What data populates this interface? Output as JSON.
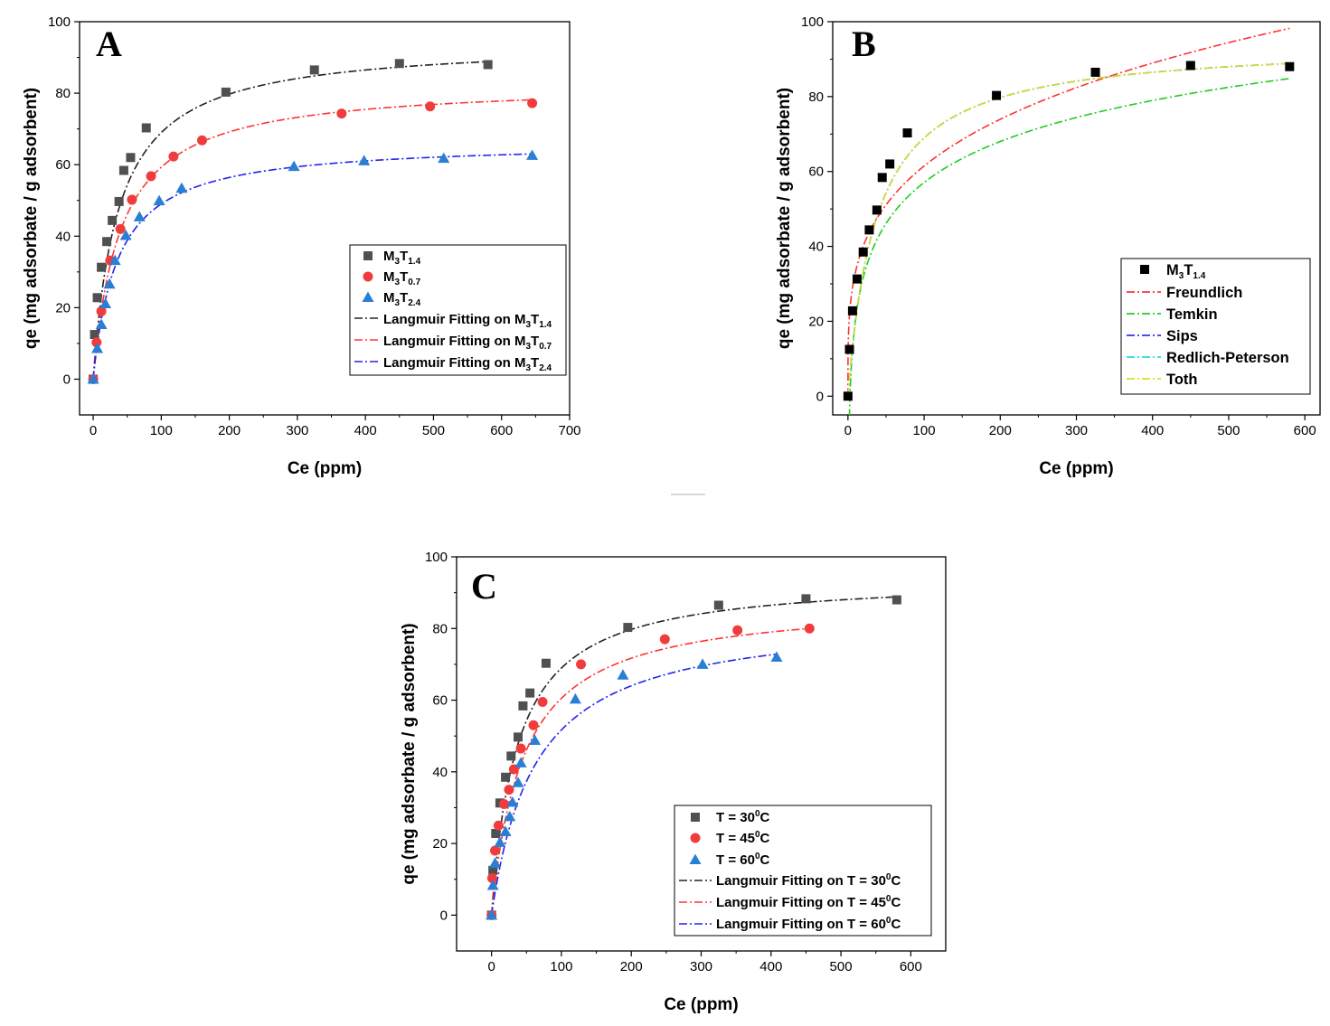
{
  "chart_data": [
    {
      "panel": "A",
      "type": "scatter",
      "xlabel": "Ce (ppm)",
      "ylabel": "qe (mg adsorbate / g adsorbent)",
      "xlim": [
        -20,
        700
      ],
      "ylim": [
        -10,
        100
      ],
      "xticks": [
        0,
        100,
        200,
        300,
        400,
        500,
        600,
        700
      ],
      "yticks": [
        0,
        20,
        40,
        60,
        80,
        100
      ],
      "legend_position": "center-right",
      "series": [
        {
          "name": "M3T1.4",
          "base": "M",
          "sub1": "3",
          "mid": "T",
          "sub2": "1.4",
          "marker": "square",
          "color": "#505050",
          "x": [
            0,
            2,
            6,
            12,
            20,
            28,
            38,
            45,
            55,
            78,
            195,
            325,
            450,
            580
          ],
          "y": [
            0,
            12.5,
            22.8,
            31.3,
            38.5,
            44.4,
            49.7,
            58.4,
            62,
            70.3,
            80.3,
            86.5,
            88.3,
            88
          ]
        },
        {
          "name": "M3T0.7",
          "base": "M",
          "sub1": "3",
          "mid": "T",
          "sub2": "0.7",
          "marker": "circle",
          "color": "#f03c3c",
          "x": [
            0,
            5,
            12,
            25,
            40,
            57,
            85,
            118,
            160,
            365,
            495,
            645
          ],
          "y": [
            0,
            10.3,
            19,
            33.2,
            42,
            50.2,
            56.8,
            62.3,
            66.8,
            74.3,
            76.3,
            77.2
          ]
        },
        {
          "name": "M3T2.4",
          "base": "M",
          "sub1": "3",
          "mid": "T",
          "sub2": "2.4",
          "marker": "triangle",
          "color": "#2a7fd4",
          "x": [
            0,
            6,
            12,
            18,
            24,
            32,
            48,
            68,
            97,
            130,
            295,
            398,
            515,
            645
          ],
          "y": [
            0,
            8.6,
            15.3,
            21.1,
            26.6,
            33.2,
            40.2,
            45.4,
            49.9,
            53.4,
            59.5,
            61.1,
            61.8,
            62.6
          ]
        }
      ],
      "fits": [
        {
          "name": "Langmuir Fitting on M3T1.4",
          "prefix": "Langmuir Fitting on M",
          "sub1": "3",
          "mid": "T",
          "sub2": "1.4",
          "color": "#222222",
          "qmax": 94.5,
          "KL": 0.027,
          "xmax": 580
        },
        {
          "name": "Langmuir Fitting on M3T0.7",
          "prefix": "Langmuir Fitting on M",
          "sub1": "3",
          "mid": "T",
          "sub2": "0.7",
          "color": "#ff3333",
          "qmax": 83.0,
          "KL": 0.025,
          "xmax": 645
        },
        {
          "name": "Langmuir Fitting on M3T2.4",
          "prefix": "Langmuir Fitting on M",
          "sub1": "3",
          "mid": "T",
          "sub2": "2.4",
          "color": "#2222ee",
          "qmax": 66.5,
          "KL": 0.028,
          "xmax": 645
        }
      ]
    },
    {
      "panel": "B",
      "type": "scatter",
      "xlabel": "Ce (ppm)",
      "ylabel": "qe (mg adsorbate / g adsorbent)",
      "xlim": [
        -20,
        620
      ],
      "ylim": [
        -5,
        100
      ],
      "xticks": [
        0,
        100,
        200,
        300,
        400,
        500,
        600
      ],
      "yticks": [
        0,
        20,
        40,
        60,
        80,
        100
      ],
      "legend_position": "bottom-right",
      "series": [
        {
          "name": "M3T1.4",
          "base": "M",
          "sub1": "3",
          "mid": "T",
          "sub2": "1.4",
          "marker": "square",
          "color": "#000000",
          "x": [
            0,
            2,
            6,
            12,
            20,
            28,
            38,
            45,
            55,
            78,
            195,
            325,
            450,
            580
          ],
          "y": [
            0,
            12.5,
            22.8,
            31.3,
            38.5,
            44.4,
            49.7,
            58.4,
            62,
            70.3,
            80.3,
            86.5,
            88.3,
            88
          ]
        }
      ],
      "fits": [
        {
          "name": "Freundlich",
          "color": "#ff3333",
          "model": "freundlich",
          "Kf": 18.0,
          "n": 3.75
        },
        {
          "name": "Temkin",
          "color": "#22cc22",
          "model": "temkin",
          "B": 15.8,
          "A": 0.37
        },
        {
          "name": "Sips",
          "color": "#3333ee",
          "model": "langmuir",
          "qmax": 94.5,
          "KL": 0.027
        },
        {
          "name": "Redlich-Peterson",
          "color": "#22dddd",
          "model": "langmuir",
          "qmax": 94.5,
          "KL": 0.027
        },
        {
          "name": "Toth",
          "color": "#dddd22",
          "model": "langmuir",
          "qmax": 94.5,
          "KL": 0.027
        }
      ]
    },
    {
      "panel": "C",
      "type": "scatter",
      "xlabel": "Ce (ppm)",
      "ylabel": "qe (mg adsorbate / g adsorbent)",
      "xlim": [
        -50,
        650
      ],
      "ylim": [
        -10,
        100
      ],
      "xticks": [
        0,
        100,
        200,
        300,
        400,
        500,
        600
      ],
      "yticks": [
        0,
        20,
        40,
        60,
        80,
        100
      ],
      "legend_position": "bottom-right",
      "series": [
        {
          "name": "T = 30⁰C",
          "base": "T = 30",
          "sup": "0",
          "tail": "C",
          "marker": "square",
          "color": "#505050",
          "x": [
            0,
            2,
            6,
            12,
            20,
            28,
            38,
            45,
            55,
            78,
            195,
            325,
            450,
            580
          ],
          "y": [
            0,
            12.5,
            22.8,
            31.3,
            38.5,
            44.4,
            49.7,
            58.4,
            62,
            70.3,
            80.3,
            86.5,
            88.3,
            88
          ]
        },
        {
          "name": "T = 45⁰C",
          "base": "T = 45",
          "sup": "0",
          "tail": "C",
          "marker": "circle",
          "color": "#f03c3c",
          "x": [
            0,
            1,
            5,
            10,
            18,
            25,
            32,
            42,
            60,
            73,
            128,
            248,
            352,
            455
          ],
          "y": [
            0,
            10.3,
            18,
            25,
            31,
            35,
            40.7,
            46.5,
            53,
            59.5,
            70,
            77,
            79.5,
            80
          ]
        },
        {
          "name": "T = 60⁰C",
          "base": "T = 60",
          "sup": "0",
          "tail": "C",
          "marker": "triangle",
          "color": "#2a7fd4",
          "x": [
            0,
            2,
            5,
            12,
            20,
            26,
            30,
            38,
            42,
            62,
            120,
            188,
            302,
            408
          ],
          "y": [
            0,
            8.3,
            14.5,
            20.3,
            23.3,
            27.5,
            31.5,
            37,
            42.5,
            48.8,
            60.3,
            67,
            70,
            72
          ]
        }
      ],
      "fits": [
        {
          "name": "Langmuir Fitting on T = 30⁰C",
          "prefix": "Langmuir Fitting on T = 30",
          "sup": "0",
          "tail": "C",
          "color": "#222222",
          "qmax": 94.5,
          "KL": 0.027,
          "xmax": 580
        },
        {
          "name": "Langmuir Fitting on T = 45⁰C",
          "prefix": "Langmuir Fitting on T = 45",
          "sup": "0",
          "tail": "C",
          "color": "#ff3333",
          "qmax": 88.0,
          "KL": 0.022,
          "xmax": 455
        },
        {
          "name": "Langmuir Fitting on T = 60⁰C",
          "prefix": "Langmuir Fitting on T = 60",
          "sup": "0",
          "tail": "C",
          "color": "#2222ee",
          "qmax": 84.0,
          "KL": 0.016,
          "xmax": 408
        }
      ]
    }
  ]
}
